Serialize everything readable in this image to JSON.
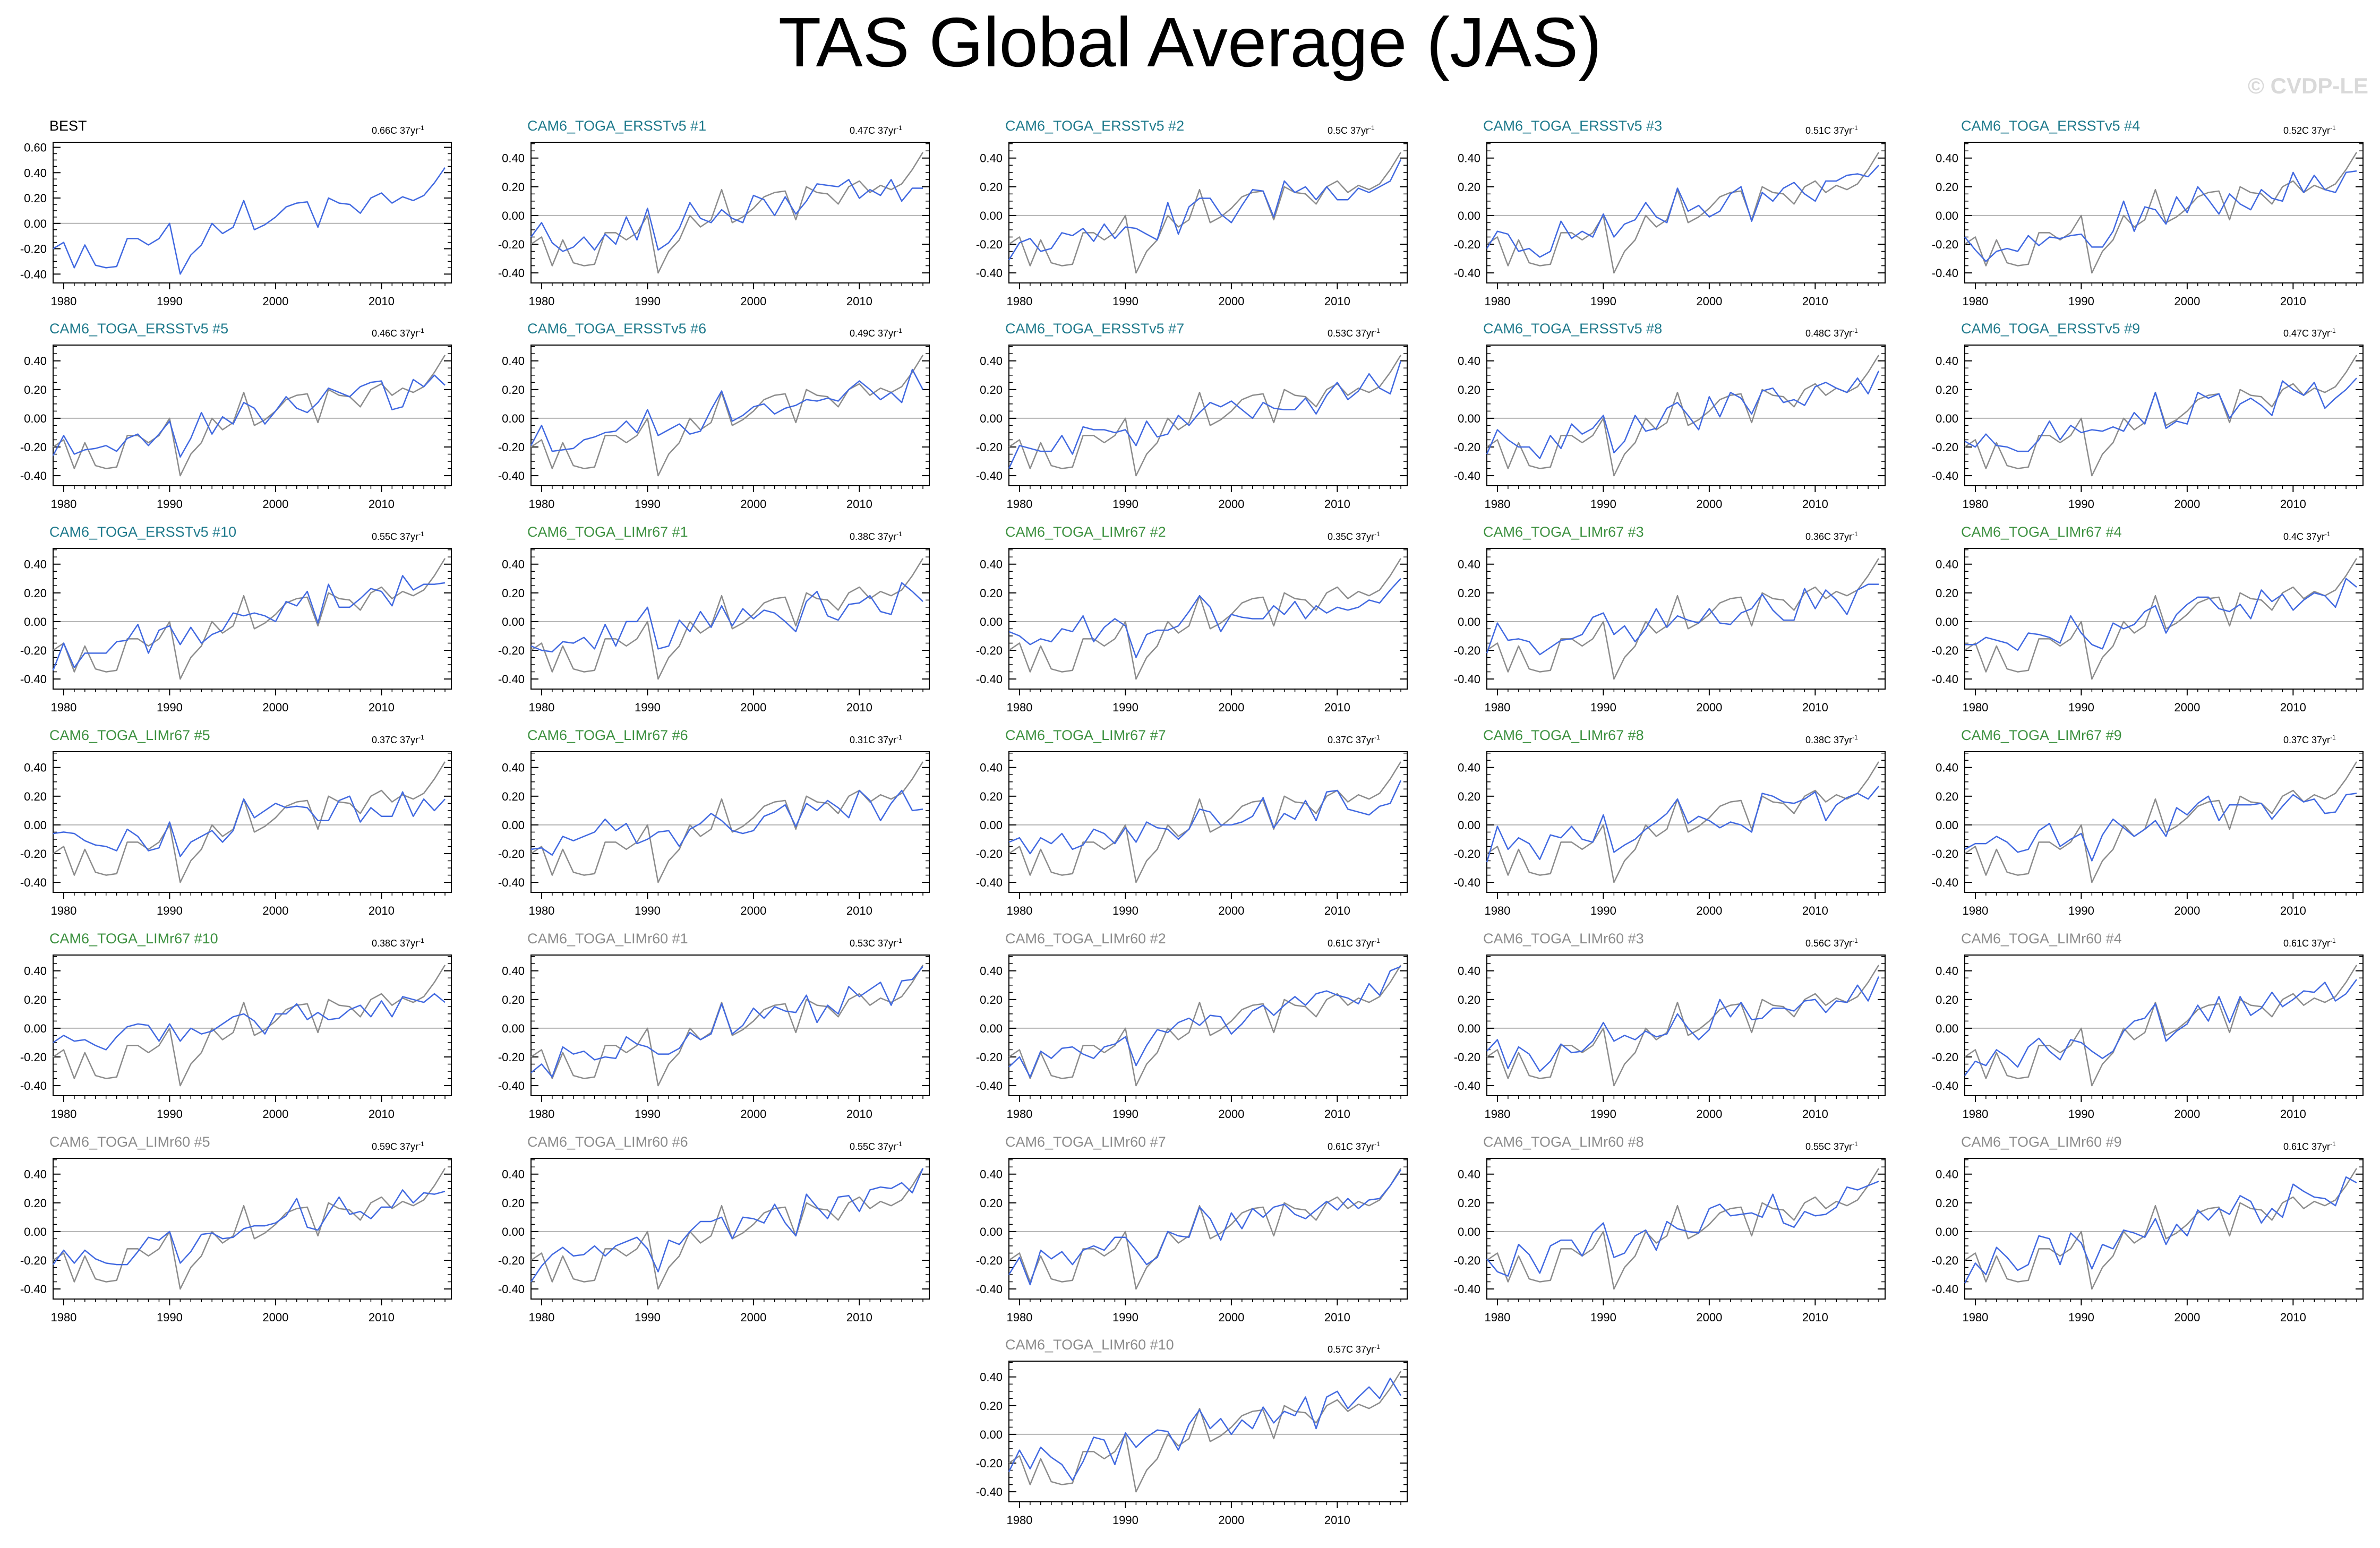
{
  "title": "TAS Global Average (JAS)",
  "watermark": "© CVDP-LE",
  "colors": {
    "model_line": "#4169e1",
    "observation_line": "#8c8c8c",
    "zero_line": "#b4b4b4",
    "obs_label": "#000000",
    "ersst_label": "#1f7a8c",
    "limr67_label": "#3d9140",
    "limr60_label": "#8c8c8c"
  },
  "chart_data": {
    "type": "line",
    "years": [
      1979,
      1980,
      1981,
      1982,
      1983,
      1984,
      1985,
      1986,
      1987,
      1988,
      1989,
      1990,
      1991,
      1992,
      1993,
      1994,
      1995,
      1996,
      1997,
      1998,
      1999,
      2000,
      2001,
      2002,
      2003,
      2004,
      2005,
      2006,
      2007,
      2008,
      2009,
      2010,
      2011,
      2012,
      2013,
      2014,
      2015,
      2016
    ],
    "observation": [
      -0.2,
      -0.15,
      -0.35,
      -0.17,
      -0.33,
      -0.35,
      -0.34,
      -0.12,
      -0.12,
      -0.17,
      -0.12,
      0.0,
      -0.4,
      -0.25,
      -0.17,
      0.0,
      -0.08,
      -0.03,
      0.18,
      -0.05,
      -0.01,
      0.05,
      0.13,
      0.16,
      0.17,
      -0.03,
      0.2,
      0.16,
      0.15,
      0.08,
      0.2,
      0.24,
      0.16,
      0.21,
      0.18,
      0.22,
      0.32,
      0.44
    ],
    "x_ticks": [
      1980,
      1990,
      2000,
      2010
    ],
    "x_tick_labels": [
      "1980",
      "1990",
      "2000",
      "2010"
    ],
    "first_panel_y_ticks": [
      0.6,
      0.4,
      0.2,
      0.0,
      -0.2,
      -0.4
    ],
    "first_panel_y_tick_labels": [
      "0.60",
      "0.40",
      "0.20",
      "0.00",
      "-0.20",
      "-0.40"
    ],
    "y_ticks": [
      0.4,
      0.2,
      0.0,
      -0.2,
      -0.4
    ],
    "y_tick_labels": [
      "0.40",
      "0.20",
      "0.00",
      "-0.20",
      "-0.40"
    ],
    "panels": [
      {
        "name": "BEST",
        "trend": "0.66C 37yr",
        "group": "obs"
      },
      {
        "name": "CAM6_TOGA_ERSSTv5 #1",
        "trend": "0.47C 37yr",
        "group": "ersst"
      },
      {
        "name": "CAM6_TOGA_ERSSTv5 #2",
        "trend": "0.5C 37yr",
        "group": "ersst"
      },
      {
        "name": "CAM6_TOGA_ERSSTv5 #3",
        "trend": "0.51C 37yr",
        "group": "ersst"
      },
      {
        "name": "CAM6_TOGA_ERSSTv5 #4",
        "trend": "0.52C 37yr",
        "group": "ersst"
      },
      {
        "name": "CAM6_TOGA_ERSSTv5 #5",
        "trend": "0.46C 37yr",
        "group": "ersst"
      },
      {
        "name": "CAM6_TOGA_ERSSTv5 #6",
        "trend": "0.49C 37yr",
        "group": "ersst"
      },
      {
        "name": "CAM6_TOGA_ERSSTv5 #7",
        "trend": "0.53C 37yr",
        "group": "ersst"
      },
      {
        "name": "CAM6_TOGA_ERSSTv5 #8",
        "trend": "0.48C 37yr",
        "group": "ersst"
      },
      {
        "name": "CAM6_TOGA_ERSSTv5 #9",
        "trend": "0.47C 37yr",
        "group": "ersst"
      },
      {
        "name": "CAM6_TOGA_ERSSTv5 #10",
        "trend": "0.55C 37yr",
        "group": "ersst"
      },
      {
        "name": "CAM6_TOGA_LIMr67 #1",
        "trend": "0.38C 37yr",
        "group": "limr67"
      },
      {
        "name": "CAM6_TOGA_LIMr67 #2",
        "trend": "0.35C 37yr",
        "group": "limr67"
      },
      {
        "name": "CAM6_TOGA_LIMr67 #3",
        "trend": "0.36C 37yr",
        "group": "limr67"
      },
      {
        "name": "CAM6_TOGA_LIMr67 #4",
        "trend": "0.4C 37yr",
        "group": "limr67"
      },
      {
        "name": "CAM6_TOGA_LIMr67 #5",
        "trend": "0.37C 37yr",
        "group": "limr67"
      },
      {
        "name": "CAM6_TOGA_LIMr67 #6",
        "trend": "0.31C 37yr",
        "group": "limr67"
      },
      {
        "name": "CAM6_TOGA_LIMr67 #7",
        "trend": "0.37C 37yr",
        "group": "limr67"
      },
      {
        "name": "CAM6_TOGA_LIMr67 #8",
        "trend": "0.38C 37yr",
        "group": "limr67"
      },
      {
        "name": "CAM6_TOGA_LIMr67 #9",
        "trend": "0.37C 37yr",
        "group": "limr67"
      },
      {
        "name": "CAM6_TOGA_LIMr67 #10",
        "trend": "0.38C 37yr",
        "group": "limr67"
      },
      {
        "name": "CAM6_TOGA_LIMr60 #1",
        "trend": "0.53C 37yr",
        "group": "limr60"
      },
      {
        "name": "CAM6_TOGA_LIMr60 #2",
        "trend": "0.61C 37yr",
        "group": "limr60"
      },
      {
        "name": "CAM6_TOGA_LIMr60 #3",
        "trend": "0.56C 37yr",
        "group": "limr60"
      },
      {
        "name": "CAM6_TOGA_LIMr60 #4",
        "trend": "0.61C 37yr",
        "group": "limr60"
      },
      {
        "name": "CAM6_TOGA_LIMr60 #5",
        "trend": "0.59C 37yr",
        "group": "limr60"
      },
      {
        "name": "CAM6_TOGA_LIMr60 #6",
        "trend": "0.55C 37yr",
        "group": "limr60"
      },
      {
        "name": "CAM6_TOGA_LIMr60 #7",
        "trend": "0.61C 37yr",
        "group": "limr60"
      },
      {
        "name": "CAM6_TOGA_LIMr60 #8",
        "trend": "0.55C 37yr",
        "group": "limr60"
      },
      {
        "name": "CAM6_TOGA_LIMr60 #9",
        "trend": "0.61C 37yr",
        "group": "limr60"
      },
      {
        "name": "CAM6_TOGA_LIMr60 #10",
        "trend": "0.57C 37yr",
        "group": "limr60"
      }
    ]
  }
}
